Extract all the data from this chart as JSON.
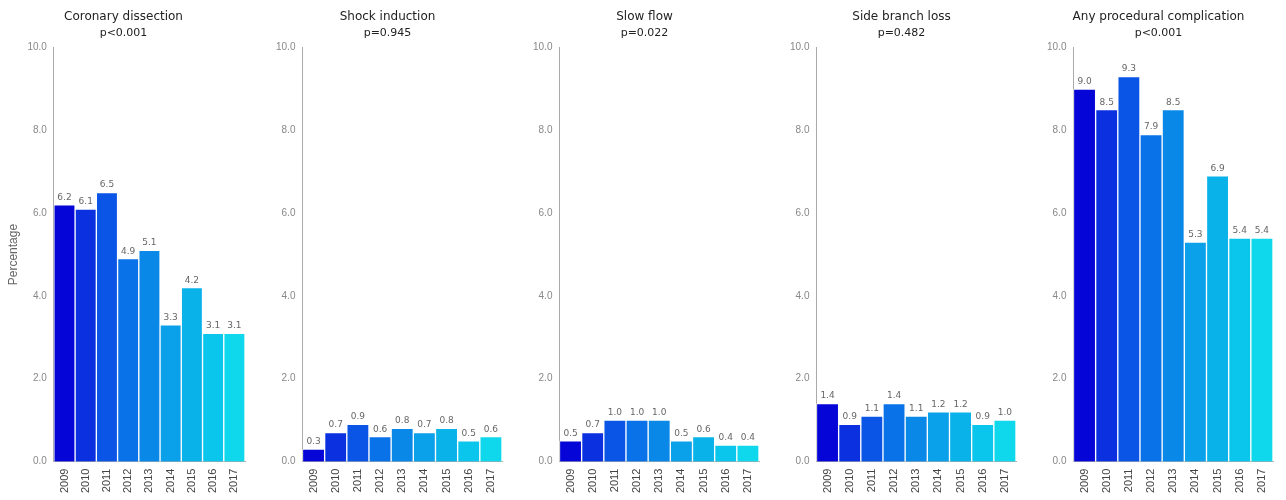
{
  "chart_data": [
    {
      "type": "bar",
      "title": "Coronary dissection",
      "subtitle": "p<0.001",
      "ylabel": "Percentage",
      "categories": [
        "2009",
        "2010",
        "2011",
        "2012",
        "2013",
        "2014",
        "2015",
        "2016",
        "2017"
      ],
      "values": [
        6.2,
        6.1,
        6.5,
        4.9,
        5.1,
        3.3,
        4.2,
        3.1,
        3.1
      ],
      "value_labels": [
        "6.2",
        "6.1",
        "6.5",
        "4.9",
        "5.1",
        "3.3",
        "4.2",
        "3.1",
        "3.1"
      ],
      "colors": [
        "#0505d8",
        "#0a30e0",
        "#0a55e6",
        "#0a72e8",
        "#0a88e8",
        "#0aa0ea",
        "#0ab2ea",
        "#0ac6ec",
        "#10d8ec"
      ],
      "ylim": [
        0,
        10
      ],
      "yticks": [
        {
          "value": 0,
          "label": "0.0"
        },
        {
          "value": 2,
          "label": "2.0"
        },
        {
          "value": 4,
          "label": "4.0"
        },
        {
          "value": 6,
          "label": "6.0"
        },
        {
          "value": 8,
          "label": "8.0"
        },
        {
          "value": 10,
          "label": "10.0"
        }
      ],
      "grid": false
    },
    {
      "type": "bar",
      "title": "Shock induction",
      "subtitle": "p=0.945",
      "categories": [
        "2009",
        "2010",
        "2011",
        "2012",
        "2013",
        "2014",
        "2015",
        "2016",
        "2017"
      ],
      "values": [
        0.3,
        0.7,
        0.9,
        0.6,
        0.8,
        0.7,
        0.8,
        0.5,
        0.6
      ],
      "value_labels": [
        "0.3",
        "0.7",
        "0.9",
        "0.6",
        "0.8",
        "0.7",
        "0.8",
        "0.5",
        "0.6"
      ],
      "colors": [
        "#0505d8",
        "#0a30e0",
        "#0a55e6",
        "#0a72e8",
        "#0a88e8",
        "#0aa0ea",
        "#0ab2ea",
        "#0ac6ec",
        "#10d8ec"
      ],
      "ylim": [
        0,
        10
      ],
      "yticks": [
        {
          "value": 0,
          "label": "0.0"
        },
        {
          "value": 2,
          "label": "2.0"
        },
        {
          "value": 4,
          "label": "4.0"
        },
        {
          "value": 6,
          "label": "6.0"
        },
        {
          "value": 8,
          "label": "8.0"
        },
        {
          "value": 10,
          "label": "10.0"
        }
      ],
      "grid": false
    },
    {
      "type": "bar",
      "title": "Slow flow",
      "subtitle": "p=0.022",
      "categories": [
        "2009",
        "2010",
        "2011",
        "2012",
        "2013",
        "2014",
        "2015",
        "2016",
        "2017"
      ],
      "values": [
        0.5,
        0.7,
        1.0,
        1.0,
        1.0,
        0.5,
        0.6,
        0.4,
        0.4
      ],
      "value_labels": [
        "0.5",
        "0.7",
        "1.0",
        "1.0",
        "1.0",
        "0.5",
        "0.6",
        "0.4",
        "0.4"
      ],
      "colors": [
        "#0505d8",
        "#0a30e0",
        "#0a55e6",
        "#0a72e8",
        "#0a88e8",
        "#0aa0ea",
        "#0ab2ea",
        "#0ac6ec",
        "#10d8ec"
      ],
      "ylim": [
        0,
        10
      ],
      "yticks": [
        {
          "value": 0,
          "label": "0.0"
        },
        {
          "value": 2,
          "label": "2.0"
        },
        {
          "value": 4,
          "label": "4.0"
        },
        {
          "value": 6,
          "label": "6.0"
        },
        {
          "value": 8,
          "label": "8.0"
        },
        {
          "value": 10,
          "label": "10.0"
        }
      ],
      "grid": false
    },
    {
      "type": "bar",
      "title": "Side branch loss",
      "subtitle": "p=0.482",
      "categories": [
        "2009",
        "2010",
        "2011",
        "2012",
        "2013",
        "2014",
        "2015",
        "2016",
        "2017"
      ],
      "values": [
        1.4,
        0.9,
        1.1,
        1.4,
        1.1,
        1.2,
        1.2,
        0.9,
        1.0
      ],
      "value_labels": [
        "1.4",
        "0.9",
        "1.1",
        "1.4",
        "1.1",
        "1.2",
        "1.2",
        "0.9",
        "1.0"
      ],
      "colors": [
        "#0505d8",
        "#0a30e0",
        "#0a55e6",
        "#0a72e8",
        "#0a88e8",
        "#0aa0ea",
        "#0ab2ea",
        "#0ac6ec",
        "#10d8ec"
      ],
      "ylim": [
        0,
        10
      ],
      "yticks": [
        {
          "value": 0,
          "label": "0.0"
        },
        {
          "value": 2,
          "label": "2.0"
        },
        {
          "value": 4,
          "label": "4.0"
        },
        {
          "value": 6,
          "label": "6.0"
        },
        {
          "value": 8,
          "label": "8.0"
        },
        {
          "value": 10,
          "label": "10.0"
        }
      ],
      "grid": false
    },
    {
      "type": "bar",
      "title": "Any procedural complication",
      "subtitle": "p<0.001",
      "categories": [
        "2009",
        "2010",
        "2011",
        "2012",
        "2013",
        "2014",
        "2015",
        "2016",
        "2017"
      ],
      "values": [
        9.0,
        8.5,
        9.3,
        7.9,
        8.5,
        5.3,
        6.9,
        5.4,
        5.4
      ],
      "value_labels": [
        "9.0",
        "8.5",
        "9.3",
        "7.9",
        "8.5",
        "5.3",
        "6.9",
        "5.4",
        "5.4"
      ],
      "colors": [
        "#0505d8",
        "#0a30e0",
        "#0a55e6",
        "#0a72e8",
        "#0a88e8",
        "#0aa0ea",
        "#0ab2ea",
        "#0ac6ec",
        "#10d8ec"
      ],
      "ylim": [
        0,
        10
      ],
      "yticks": [
        {
          "value": 0,
          "label": "0.0"
        },
        {
          "value": 2,
          "label": "2.0"
        },
        {
          "value": 4,
          "label": "4.0"
        },
        {
          "value": 6,
          "label": "6.0"
        },
        {
          "value": 8,
          "label": "8.0"
        },
        {
          "value": 10,
          "label": "10.0"
        }
      ],
      "grid": false
    }
  ]
}
